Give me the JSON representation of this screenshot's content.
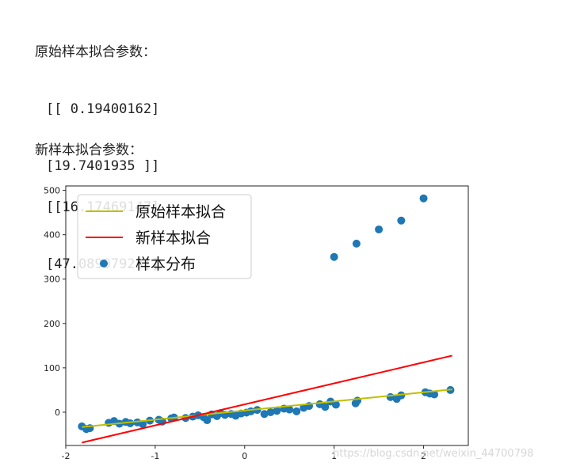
{
  "output": {
    "original_heading": "原始样本拟合参数：",
    "original_line1": "[[ 0.19400162]",
    "original_line2": "[19.7401935 ]]",
    "new_heading": "新样本拟合参数：",
    "new_line1": "[[16.17469147]",
    "new_line2": "[47.08997923]]"
  },
  "chart_data": {
    "type": "scatter",
    "xlim": [
      -2.0,
      2.5
    ],
    "ylim": [
      -75,
      510
    ],
    "x_ticks": [
      "-2",
      "-1",
      "0",
      "1",
      "2"
    ],
    "x_tick_values": [
      -2,
      -1,
      0,
      1,
      2
    ],
    "y_ticks": [
      "0",
      "100",
      "200",
      "300",
      "400",
      "500"
    ],
    "y_tick_values": [
      0,
      100,
      200,
      300,
      400,
      500
    ],
    "grid": false,
    "legend_position": "upper-left",
    "series": [
      {
        "name": "原始样本拟合",
        "kind": "line",
        "color": "#bfbf00",
        "x": [
          -1.82,
          2.32
        ],
        "y": [
          -33.6,
          51.4
        ]
      },
      {
        "name": "新样本拟合",
        "kind": "line",
        "color": "#ff0000",
        "x": [
          -1.82,
          2.32
        ],
        "y": [
          -68.5,
          127.5
        ]
      },
      {
        "name": "样本分布",
        "kind": "scatter",
        "color": "#1f77b4",
        "x": [
          -1.82,
          -1.77,
          -1.73,
          -1.52,
          -1.46,
          -1.4,
          -1.33,
          -1.28,
          -1.2,
          -1.14,
          -1.06,
          -0.96,
          -0.92,
          -0.82,
          -0.79,
          -0.66,
          -0.58,
          -0.52,
          -0.46,
          -0.42,
          -0.37,
          -0.31,
          -0.27,
          -0.22,
          -0.15,
          -0.1,
          -0.04,
          0.02,
          0.07,
          0.14,
          0.22,
          0.29,
          0.36,
          0.44,
          0.5,
          0.58,
          0.66,
          0.72,
          0.84,
          0.9,
          0.96,
          1.02,
          1.24,
          1.26,
          1.63,
          1.7,
          1.75,
          2.02,
          2.07,
          2.12,
          2.3,
          1.0,
          1.25,
          1.5,
          1.75,
          2.0
        ],
        "y": [
          -32,
          -38,
          -36,
          -24,
          -20,
          -26,
          -22,
          -25,
          -23,
          -27,
          -19,
          -17,
          -21,
          -14,
          -12,
          -13,
          -10,
          -7,
          -11,
          -18,
          -5,
          -9,
          -2,
          -6,
          -4,
          -8,
          -3,
          -1,
          2,
          5,
          -4,
          0,
          3,
          8,
          6,
          2,
          10,
          14,
          18,
          12,
          24,
          17,
          20,
          26,
          34,
          30,
          38,
          45,
          42,
          40,
          50,
          350,
          380,
          412,
          432,
          482
        ]
      }
    ]
  },
  "watermark": "https://blog.csdn.net/weixin_44700798"
}
